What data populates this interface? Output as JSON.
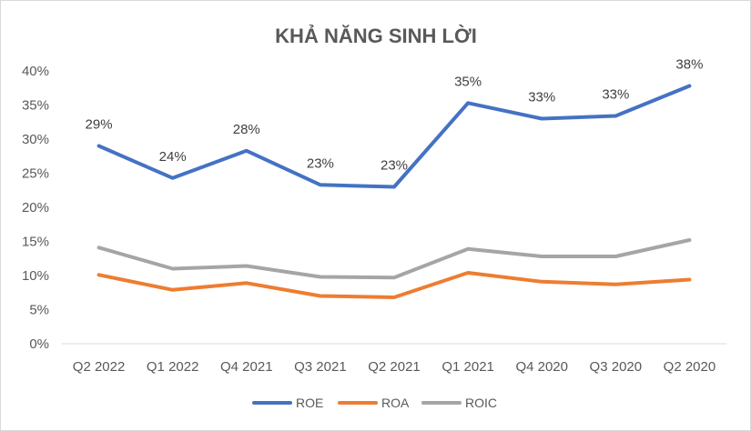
{
  "chart_data": {
    "type": "line",
    "title": "KHẢ NĂNG SINH LỜI",
    "categories": [
      "Q2 2022",
      "Q1 2022",
      "Q4 2021",
      "Q3 2021",
      "Q2 2021",
      "Q1 2021",
      "Q4 2020",
      "Q3 2020",
      "Q2 2020"
    ],
    "ylim": [
      0,
      0.4
    ],
    "yticks": [
      0,
      0.05,
      0.1,
      0.15,
      0.2,
      0.25,
      0.3,
      0.35,
      0.4
    ],
    "ytick_labels": [
      "0%",
      "5%",
      "10%",
      "15%",
      "20%",
      "25%",
      "30%",
      "35%",
      "40%"
    ],
    "grid": false,
    "legend_position": "bottom",
    "series": [
      {
        "name": "ROE",
        "color": "#4472c4",
        "values": [
          0.29,
          0.243,
          0.283,
          0.233,
          0.23,
          0.353,
          0.33,
          0.334,
          0.378
        ],
        "labels": [
          "29%",
          "24%",
          "28%",
          "23%",
          "23%",
          "35%",
          "33%",
          "33%",
          "38%"
        ]
      },
      {
        "name": "ROA",
        "color": "#ed7d31",
        "values": [
          0.101,
          0.079,
          0.089,
          0.07,
          0.068,
          0.104,
          0.091,
          0.087,
          0.094
        ]
      },
      {
        "name": "ROIC",
        "color": "#a5a5a5",
        "values": [
          0.141,
          0.11,
          0.114,
          0.098,
          0.097,
          0.139,
          0.128,
          0.128,
          0.152
        ]
      }
    ]
  }
}
